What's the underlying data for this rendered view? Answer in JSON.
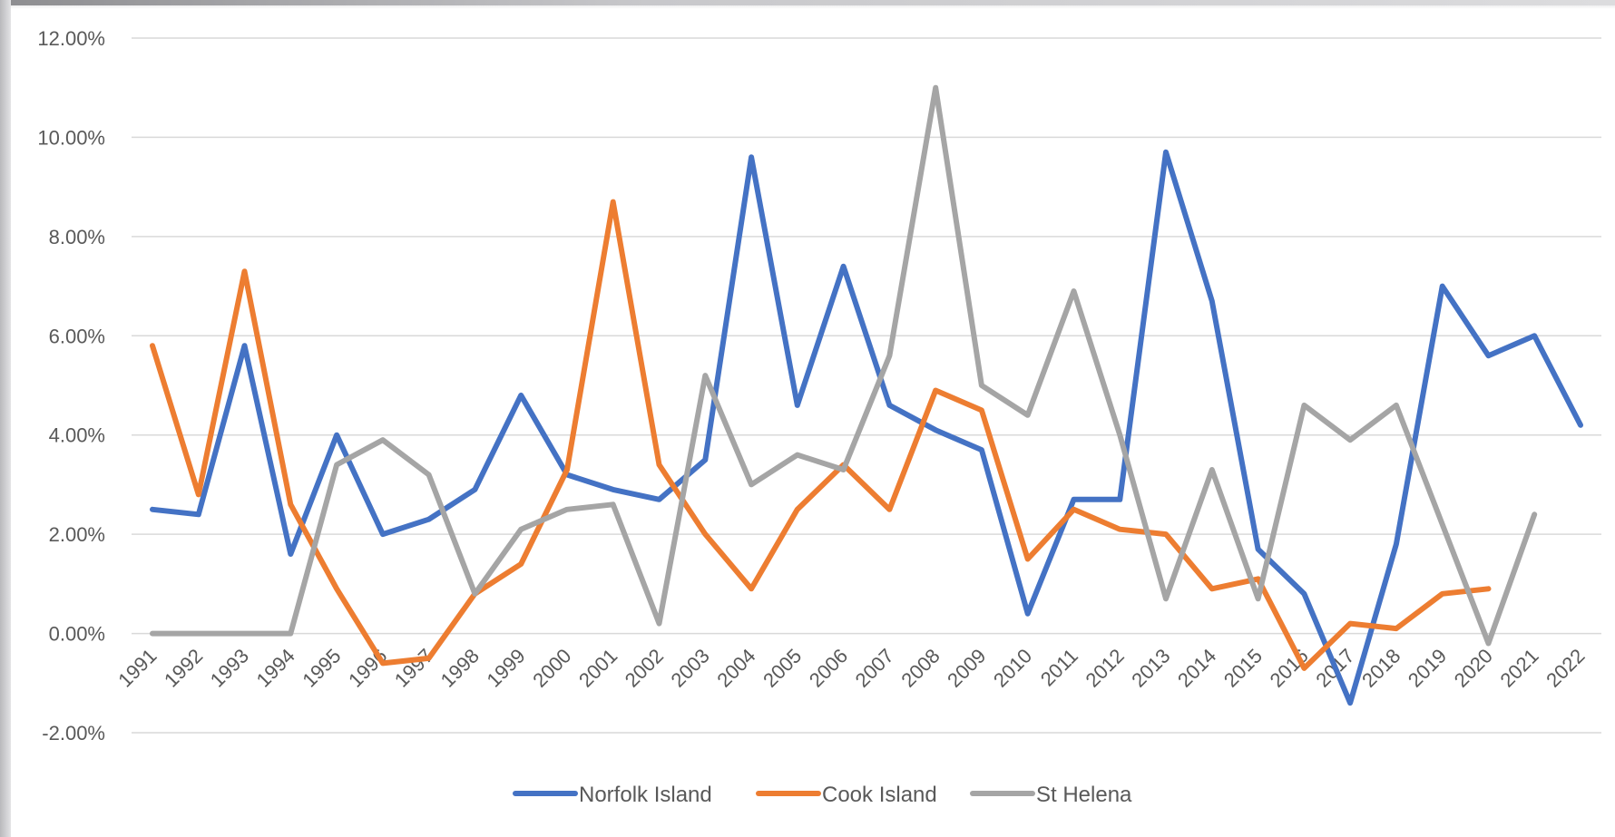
{
  "chart_data": {
    "type": "line",
    "title": "",
    "xlabel": "",
    "ylabel": "",
    "ylim": [
      -0.02,
      0.12
    ],
    "y_ticks": [
      -0.02,
      0.0,
      0.02,
      0.04,
      0.06,
      0.08,
      0.1,
      0.12
    ],
    "y_tick_labels": [
      "-2.00%",
      "0.00%",
      "2.00%",
      "4.00%",
      "6.00%",
      "8.00%",
      "10.00%",
      "12.00%"
    ],
    "grid": true,
    "legend_position": "bottom",
    "categories": [
      "1991",
      "1992",
      "1993",
      "1994",
      "1995",
      "1996",
      "1997",
      "1998",
      "1999",
      "2000",
      "2001",
      "2002",
      "2003",
      "2004",
      "2005",
      "2006",
      "2007",
      "2008",
      "2009",
      "2010",
      "2011",
      "2012",
      "2013",
      "2014",
      "2015",
      "2016",
      "2017",
      "2018",
      "2019",
      "2020",
      "2021",
      "2022"
    ],
    "series": [
      {
        "name": "Norfolk Island",
        "color": "#4472c4",
        "values": [
          0.025,
          0.024,
          0.058,
          0.016,
          0.04,
          0.02,
          0.023,
          0.029,
          0.048,
          0.032,
          0.029,
          0.027,
          0.035,
          0.096,
          0.046,
          0.074,
          0.046,
          0.041,
          0.037,
          0.004,
          0.027,
          0.027,
          0.097,
          0.067,
          0.017,
          0.008,
          -0.014,
          0.018,
          0.07,
          0.056,
          0.06,
          0.042
        ]
      },
      {
        "name": "Cook Island",
        "color": "#ed7d31",
        "values": [
          0.058,
          0.028,
          0.073,
          0.026,
          0.009,
          -0.006,
          -0.005,
          0.008,
          0.014,
          0.033,
          0.087,
          0.034,
          0.02,
          0.009,
          0.025,
          0.034,
          0.025,
          0.049,
          0.045,
          0.015,
          0.025,
          0.021,
          0.02,
          0.009,
          0.011,
          -0.007,
          0.002,
          0.001,
          0.008,
          0.009,
          null,
          null
        ]
      },
      {
        "name": "St Helena",
        "color": "#a5a5a5",
        "values": [
          0.0,
          0.0,
          0.0,
          0.0,
          0.034,
          0.039,
          0.032,
          0.008,
          0.021,
          0.025,
          0.026,
          0.002,
          0.052,
          0.03,
          0.036,
          0.033,
          0.056,
          0.11,
          0.05,
          0.044,
          0.069,
          0.04,
          0.007,
          0.033,
          0.007,
          0.046,
          0.039,
          0.046,
          0.022,
          -0.002,
          0.024,
          null
        ]
      }
    ]
  }
}
